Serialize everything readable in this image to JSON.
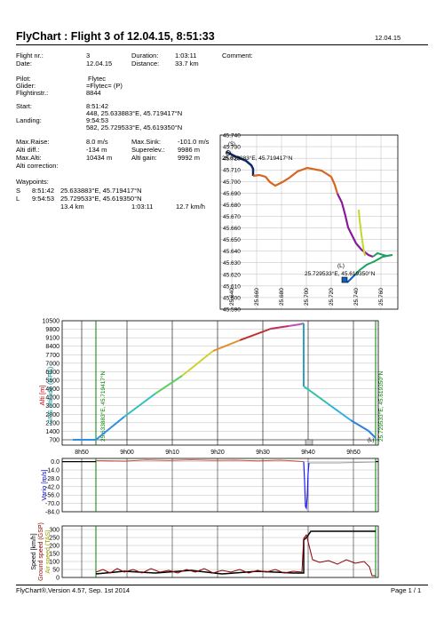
{
  "header": {
    "title": "FlyChart : Flight 3 of 12.04.15, 8:51:33",
    "print_date": "12.04.15"
  },
  "flight": {
    "flight_nr_label": "Flight nr.:",
    "flight_nr": "3",
    "date_label": "Date:",
    "date": "12.04.15",
    "duration_label": "Duration:",
    "duration": "1:03:11",
    "distance_label": "Distance:",
    "distance": "33.7 km",
    "comment_label": "Comment:",
    "pilot_label": "Pilot:",
    "pilot": "Flytec",
    "glider_label": "Glider:",
    "glider": "=Flytec= (P)",
    "flightinstr_label": "Flightinstr.:",
    "flightinstr": "8844",
    "start_label": "Start:",
    "start_time": "8:51:42",
    "start_pos": "448, 25.633883°E, 45.719417°N",
    "landing_label": "Landing:",
    "landing_time": "9:54:53",
    "landing_pos": "582, 25.729533°E, 45.619350°N",
    "max_raise_label": "Max.Raise:",
    "max_raise": "8.0 m/s",
    "max_sink_label": "Max.Sink:",
    "max_sink": "-101.0 m/s",
    "alti_diff_label": "Alti diff.:",
    "alti_diff": "-134 m",
    "superelev_label": "Superelev.:",
    "superelev": "9986 m",
    "max_alti_label": "Max.Alti:",
    "max_alti": "10434 m",
    "alti_gain_label": "Alti gain:",
    "alti_gain": "9992 m",
    "alti_correction_label": "Alti correction:"
  },
  "waypoints": {
    "label": "Waypoints:",
    "rows": [
      {
        "code": "S",
        "time": "8:51:42",
        "pos": "25.633883°E, 45.719417°N"
      },
      {
        "code": "L",
        "time": "9:54:53",
        "pos": "25.729533°E, 45.619350°N"
      }
    ],
    "total_dist": "13.4 km",
    "total_time": "1:03:11",
    "avg_speed": "12.7 km/h"
  },
  "map": {
    "lat_ticks": [
      "45.740",
      "45.730",
      "45.720",
      "45.710",
      "45.700",
      "45.690",
      "45.680",
      "45.670",
      "45.660",
      "45.650",
      "45.640",
      "45.630",
      "45.620",
      "45.610",
      "45.600",
      "45.590"
    ],
    "lon_ticks": [
      "25.640",
      "25.660",
      "25.680",
      "25.700",
      "25.720",
      "25.740",
      "25.760"
    ],
    "start_marker": "(S)",
    "start_label": "25.633883°E, 45.719417°N",
    "landing_marker": "(L)",
    "landing_label": "25.729533°E, 45.619350°N"
  },
  "altitude_chart": {
    "ylabel_1": "Alti [m]",
    "ylabel_2": "GPS altitude (GPA)",
    "y_ticks": [
      "10500",
      "9800",
      "9100",
      "8400",
      "7700",
      "7000",
      "6300",
      "5600",
      "4900",
      "4200",
      "3500",
      "2800",
      "2100",
      "1400",
      "700"
    ],
    "x_ticks": [
      "8h50",
      "9h00",
      "9h10",
      "9h20",
      "9h30",
      "9h40",
      "9h50"
    ],
    "start_vlabel": "25.633883°E, 45.719417°N",
    "landing_vlabel": "25.729533°E, 45.619350°N",
    "end_marker": "(L)"
  },
  "vario_chart": {
    "ylabel": "Vario [m/s]",
    "y_ticks": [
      "0.0",
      "-14.0",
      "-28.0",
      "-42.0",
      "-56.0",
      "-70.0",
      "-84.0"
    ]
  },
  "speed_chart": {
    "ylabel_1": "Speed [km/h]",
    "ylabel_2": "Ground speed (GSP)",
    "ylabel_3": "Air speed (TAS)",
    "y_ticks": [
      "300",
      "250",
      "200",
      "150",
      "100",
      "50",
      "0"
    ]
  },
  "footer": {
    "left": "FlyChart®,Version 4.57, Sep. 1st 2014",
    "right": "Page 1 / 1"
  },
  "colors": {
    "altitude_label": "#cc0000",
    "gps_label": "#008888",
    "vario_label": "#0000cc",
    "ground_speed_label": "#8b0000",
    "air_speed_label": "#999900",
    "waypoint_line": "#008000"
  }
}
